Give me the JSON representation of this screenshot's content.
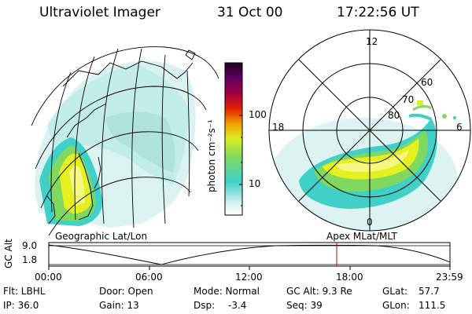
{
  "header": {
    "instrument": "Ultraviolet Imager",
    "date": "31 Oct 00",
    "time": "17:22:56 UT"
  },
  "colorbar": {
    "unit_label": "photon cm⁻²s⁻¹",
    "ticks": [
      "100",
      "10"
    ],
    "colors": [
      "#ffffff",
      "#d4f0f0",
      "#40d0c8",
      "#80d860",
      "#d8f020",
      "#f0a000",
      "#e02000",
      "#a00040",
      "#600060",
      "#200020"
    ]
  },
  "polar_plot": {
    "mlt_labels": {
      "top": "12",
      "left": "18",
      "right": "6",
      "bottom": "0"
    },
    "lat_labels": [
      "60",
      "70",
      "80"
    ]
  },
  "left_map_label": "Geographic Lat/Lon",
  "right_map_label": "Apex MLat/MLT",
  "altitude_panel": {
    "axis_label": "GC Alt",
    "y_ticks": [
      "9.0",
      "1.8"
    ],
    "x_ticks": [
      "00:00",
      "06:00",
      "12:00",
      "18:00",
      "23:59"
    ]
  },
  "footer": {
    "filter": "Flt: LBHL",
    "ip": "IP: 36.0",
    "door": "Door: Open",
    "gain": "Gain: 13",
    "mode": "Mode: Normal",
    "dsp_label": "Dsp:",
    "dsp_value": "-3.4",
    "gc_alt": "GC Alt: 9.3 Re",
    "seq": "Seq: 39",
    "glat_label": "GLat:",
    "glat_value": "57.7",
    "glon_label": "GLon:",
    "glon_value": "111.5"
  }
}
